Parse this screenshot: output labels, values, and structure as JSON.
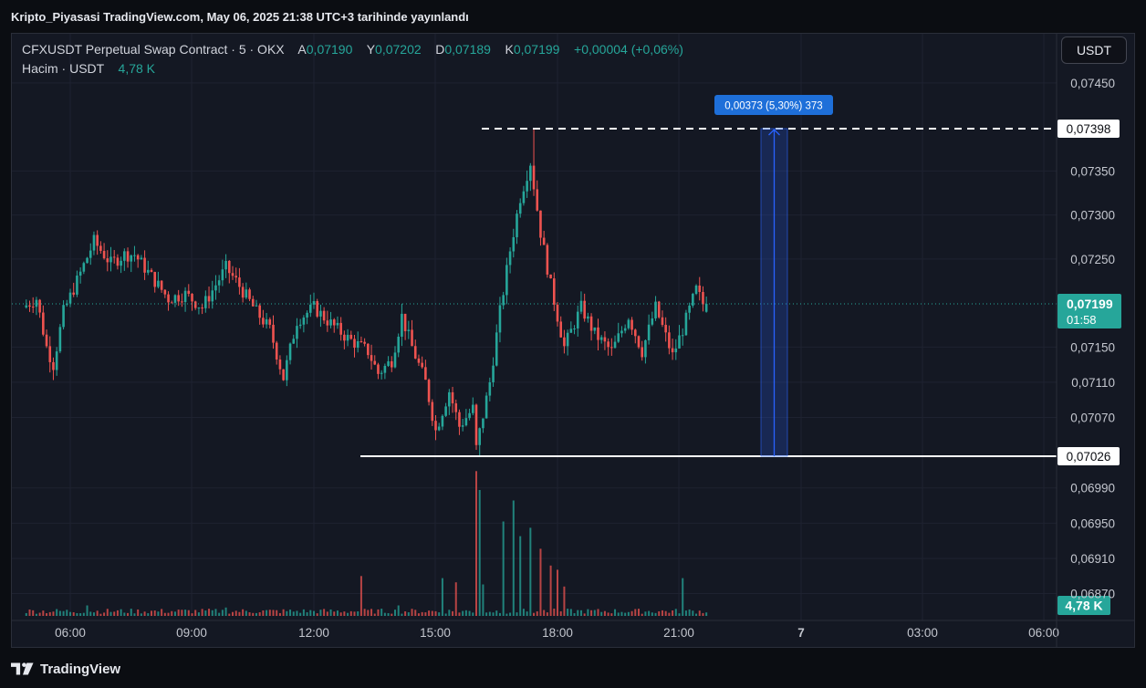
{
  "header": {
    "published_line": "Kripto_Piyasasi TradingView.com, May 06, 2025 21:38 UTC+3 tarihinde yayınlandı"
  },
  "legend": {
    "symbol": "CFXUSDT Perpetual Swap Contract · 5 · OKX",
    "open_label": "A",
    "open": "0,07190",
    "high_label": "Y",
    "high": "0,07202",
    "low_label": "D",
    "low": "0,07189",
    "close_label": "K",
    "close": "0,07199",
    "change": "+0,00004 (+0,06%)",
    "volume_label": "Hacim · USDT",
    "volume": "4,78 K"
  },
  "currency_button": "USDT",
  "footer": {
    "brand": "TradingView"
  },
  "colors": {
    "up": "#26a69a",
    "down": "#ef5350",
    "background": "#141823",
    "grid": "#1e2230",
    "measure": "#2962ff"
  },
  "chart_data": {
    "type": "candlestick",
    "interval_minutes": 5,
    "x_ticks": [
      "06:00",
      "09:00",
      "12:00",
      "15:00",
      "18:00",
      "21:00",
      "7",
      "03:00",
      "06:00"
    ],
    "y_ticks": [
      "0,07450",
      "0,07350",
      "0,07300",
      "0,07250",
      "0,07150",
      "0,07110",
      "0,07070",
      "0,06990",
      "0,06950",
      "0,06910",
      "0,06870"
    ],
    "ylim": [
      0.0686,
      0.0748
    ],
    "current_price": {
      "value": "0,07199",
      "countdown": "01:58"
    },
    "volume_badge": "4,78 K",
    "horizontal_lines": [
      {
        "value": "0,07398",
        "style": "dashed"
      },
      {
        "value": "0,07026",
        "style": "solid"
      }
    ],
    "measure": {
      "label": "0,00373 (5,30%) 373",
      "from": 0.07026,
      "to": 0.07398
    },
    "price_anchors": [
      [
        "04:55",
        0.07195
      ],
      [
        "05:15",
        0.07205
      ],
      [
        "05:30",
        0.0715
      ],
      [
        "05:40",
        0.0713
      ],
      [
        "05:55",
        0.0719
      ],
      [
        "06:15",
        0.07225
      ],
      [
        "06:40",
        0.0727
      ],
      [
        "07:05",
        0.07245
      ],
      [
        "07:25",
        0.07255
      ],
      [
        "07:40",
        0.07255
      ],
      [
        "08:05",
        0.0723
      ],
      [
        "08:30",
        0.07205
      ],
      [
        "08:55",
        0.0721
      ],
      [
        "09:20",
        0.07195
      ],
      [
        "09:55",
        0.0724
      ],
      [
        "10:10",
        0.07225
      ],
      [
        "10:40",
        0.0719
      ],
      [
        "11:00",
        0.0717
      ],
      [
        "11:20",
        0.07115
      ],
      [
        "11:40",
        0.0718
      ],
      [
        "12:05",
        0.07195
      ],
      [
        "12:25",
        0.0718
      ],
      [
        "12:55",
        0.0716
      ],
      [
        "13:25",
        0.07145
      ],
      [
        "13:40",
        0.0712
      ],
      [
        "14:00",
        0.07135
      ],
      [
        "14:15",
        0.07185
      ],
      [
        "14:30",
        0.0715
      ],
      [
        "14:50",
        0.0711
      ],
      [
        "15:05",
        0.07055
      ],
      [
        "15:25",
        0.071
      ],
      [
        "15:40",
        0.0706
      ],
      [
        "16:00",
        0.0708
      ],
      [
        "16:05",
        0.07035
      ],
      [
        "16:25",
        0.0711
      ],
      [
        "16:40",
        0.0719
      ],
      [
        "16:55",
        0.0726
      ],
      [
        "17:10",
        0.0732
      ],
      [
        "17:25",
        0.0736
      ],
      [
        "17:40",
        0.0728
      ],
      [
        "17:55",
        0.0722
      ],
      [
        "18:15",
        0.0715
      ],
      [
        "18:40",
        0.07195
      ],
      [
        "19:00",
        0.07165
      ],
      [
        "19:25",
        0.07145
      ],
      [
        "19:50",
        0.07185
      ],
      [
        "20:10",
        0.07145
      ],
      [
        "20:30",
        0.07195
      ],
      [
        "20:55",
        0.0714
      ],
      [
        "21:10",
        0.0717
      ],
      [
        "21:30",
        0.07215
      ],
      [
        "21:40",
        0.07199
      ]
    ],
    "volume_spikes": [
      [
        "16:00",
        0.69
      ],
      [
        "16:05",
        0.6
      ],
      [
        "16:10",
        0.15
      ],
      [
        "16:40",
        0.45
      ],
      [
        "16:55",
        0.55
      ],
      [
        "17:05",
        0.38
      ],
      [
        "17:20",
        0.42
      ],
      [
        "17:35",
        0.32
      ],
      [
        "17:50",
        0.24
      ],
      [
        "18:00",
        0.22
      ],
      [
        "18:10",
        0.14
      ],
      [
        "15:10",
        0.18
      ],
      [
        "15:30",
        0.16
      ],
      [
        "14:05",
        0.05
      ],
      [
        "13:10",
        0.19
      ],
      [
        "21:05",
        0.18
      ],
      [
        "06:25",
        0.05
      ],
      [
        "09:50",
        0.04
      ]
    ]
  }
}
